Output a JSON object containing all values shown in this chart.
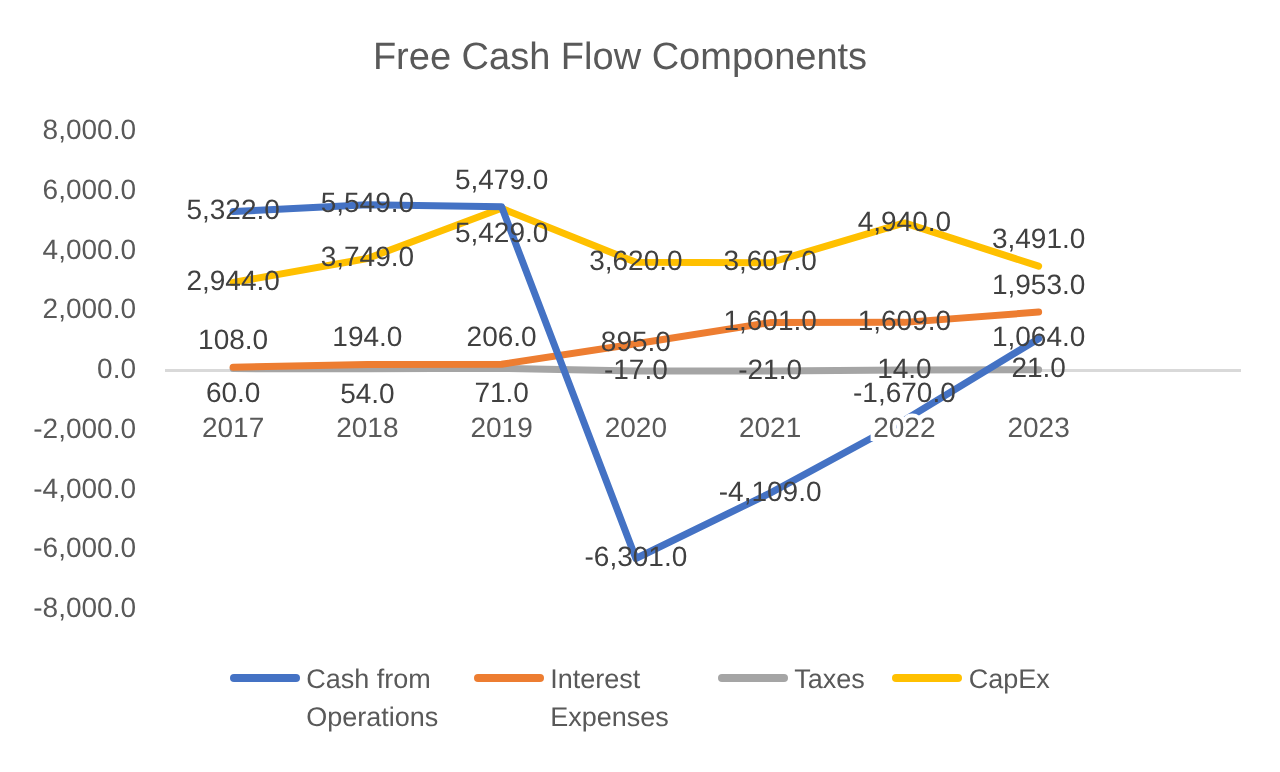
{
  "chart_data": {
    "type": "line",
    "title": "Free Cash Flow Components",
    "categories": [
      "2017",
      "2018",
      "2019",
      "2020",
      "2021",
      "2022",
      "2023",
      null
    ],
    "series": [
      {
        "name": "Cash from Operations",
        "color": "#4472c4",
        "values": [
          5322,
          5549,
          5479,
          -6301,
          -4109,
          -1670,
          1064,
          null
        ],
        "value_labels": [
          "5,322.0",
          "5,549.0",
          "5,479.0",
          "-6,301.0",
          "-4,109.0",
          "-1,670.0",
          "1,064.0",
          null
        ]
      },
      {
        "name": "Interest Expenses",
        "color": "#ed7d31",
        "values": [
          108,
          194,
          206,
          895,
          1601,
          1609,
          1953,
          null
        ],
        "value_labels": [
          "108.0",
          "194.0",
          "206.0",
          "895.0",
          "1,601.0",
          "1,609.0",
          "1,953.0",
          null
        ]
      },
      {
        "name": "Taxes",
        "color": "#a5a5a5",
        "values": [
          60,
          54,
          71,
          -17,
          -21,
          14,
          21,
          null
        ],
        "value_labels": [
          "60.0",
          "54.0",
          "71.0",
          "-17.0",
          "-21.0",
          "14.0",
          "21.0",
          null
        ]
      },
      {
        "name": "CapEx",
        "color": "#ffc000",
        "values": [
          2944,
          3749,
          5429,
          3620,
          3607,
          4940,
          3491,
          null
        ],
        "value_labels": [
          "2,944.0",
          "3,749.0",
          "5,429.0",
          "3,620.0",
          "3,607.0",
          "4,940.0",
          "3,491.0",
          null
        ]
      }
    ],
    "ylim": [
      -8000,
      8000
    ],
    "yticks": [
      {
        "value": -8000,
        "label": "-8,000.0"
      },
      {
        "value": -6000,
        "label": "-6,000.0"
      },
      {
        "value": -4000,
        "label": "-4,000.0"
      },
      {
        "value": -2000,
        "label": "-2,000.0"
      },
      {
        "value": 0,
        "label": "0.0"
      },
      {
        "value": 2000,
        "label": "2,000.0"
      },
      {
        "value": 4000,
        "label": "4,000.0"
      },
      {
        "value": 6000,
        "label": "6,000.0"
      },
      {
        "value": 8000,
        "label": "8,000.0"
      }
    ],
    "grid": false,
    "legend": "bottom",
    "marker": "none",
    "line_style": "solid"
  }
}
